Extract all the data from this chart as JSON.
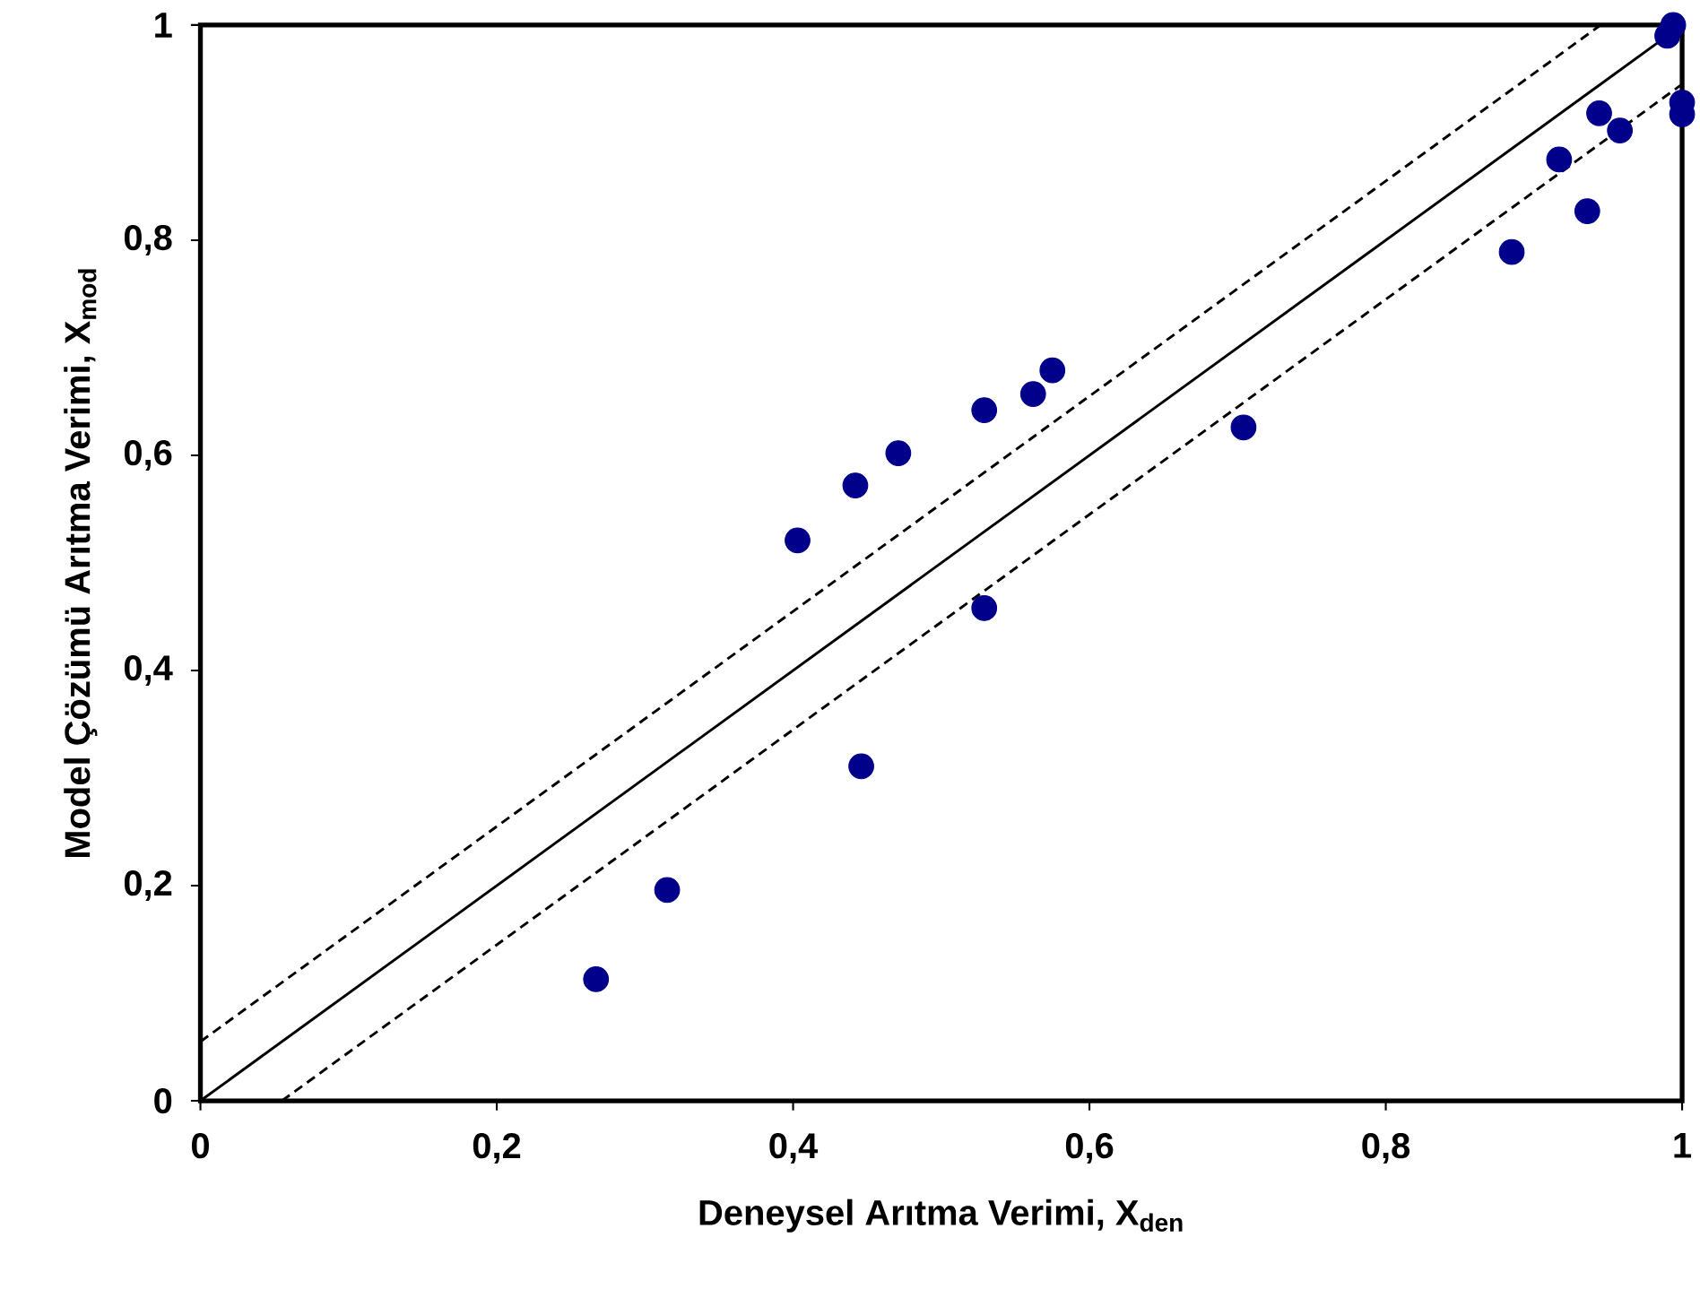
{
  "chart_data": {
    "type": "scatter",
    "xlabel": "Deneysel Arıtma Verimi, X$_{den}$",
    "ylabel": "Model Çözümü Arıtma Verimi, X$_{mod}$",
    "xlim": [
      0,
      1
    ],
    "ylim": [
      0,
      1
    ],
    "xticks": [
      0,
      {
        "value": 0.2,
        "label": "0,2"
      },
      {
        "value": 0.4,
        "label": "0,4"
      },
      {
        "value": 0.6,
        "label": "0,6"
      },
      {
        "value": 0.8,
        "label": "0,8"
      },
      1
    ],
    "yticks": [
      0,
      {
        "value": 0.2,
        "label": "0,2"
      },
      {
        "value": 0.4,
        "label": "0,4"
      },
      {
        "value": 0.6,
        "label": "0,6"
      },
      {
        "value": 0.8,
        "label": "0,8"
      },
      1
    ],
    "grid": false,
    "series": [
      {
        "type": "scatter",
        "color": "#00008b",
        "marker": "circle",
        "x": [
          0.267,
          0.315,
          0.403,
          0.442,
          0.446,
          0.471,
          0.529,
          0.529,
          0.562,
          0.575,
          0.704,
          0.885,
          0.917,
          0.936,
          0.944,
          0.958,
          0.99,
          0.994,
          1.0,
          1.0
        ],
        "values": [
          0.113,
          0.196,
          0.521,
          0.572,
          0.311,
          0.602,
          0.642,
          0.458,
          0.657,
          0.679,
          0.626,
          0.789,
          0.875,
          0.827,
          0.918,
          0.902,
          0.99,
          1.0,
          0.928,
          0.917
        ]
      },
      {
        "type": "line",
        "color": "#000000",
        "line_style": "solid",
        "marker": "none",
        "x": [
          0,
          1
        ],
        "values": [
          0,
          1
        ]
      },
      {
        "type": "line",
        "color": "#000000",
        "line_style": "dashed",
        "marker": "none",
        "x": [
          0,
          0.945
        ],
        "values": [
          0.055,
          1
        ]
      },
      {
        "type": "line",
        "color": "#000000",
        "line_style": "dashed",
        "marker": "none",
        "x": [
          0.055,
          1
        ],
        "values": [
          0,
          0.945
        ]
      }
    ]
  }
}
